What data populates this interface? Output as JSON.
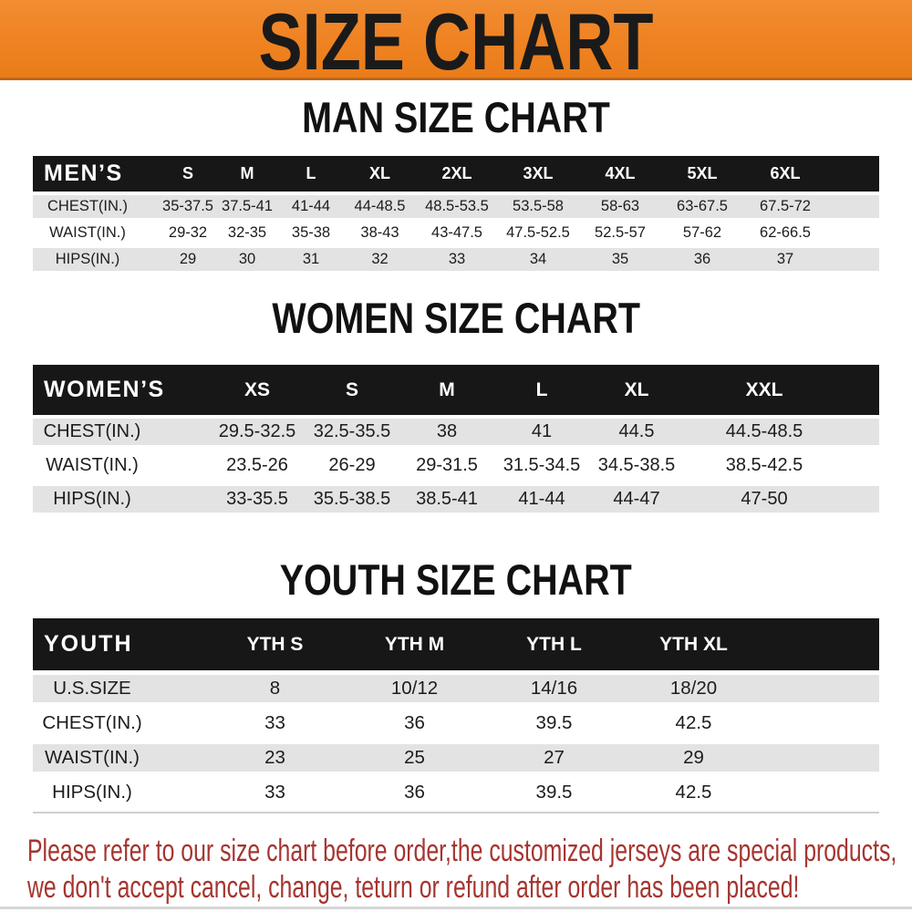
{
  "banner": {
    "title": "SIZE CHART"
  },
  "colors": {
    "banner_orange": "#EF8221",
    "header_bar_black": "#171717",
    "row_gray": "#e3e3e3",
    "footer_red": "#A63530"
  },
  "sections": [
    {
      "heading": "MAN SIZE CHART",
      "group_label": "MEN’S",
      "sizes": [
        "S",
        "M",
        "L",
        "XL",
        "2XL",
        "3XL",
        "4XL",
        "5XL",
        "6XL"
      ],
      "rows": [
        {
          "label": "CHEST(IN.)",
          "values": [
            "35-37.5",
            "37.5-41",
            "41-44",
            "44-48.5",
            "48.5-53.5",
            "53.5-58",
            "58-63",
            "63-67.5",
            "67.5-72"
          ]
        },
        {
          "label": "WAIST(IN.)",
          "values": [
            "29-32",
            "32-35",
            "35-38",
            "38-43",
            "43-47.5",
            "47.5-52.5",
            "52.5-57",
            "57-62",
            "62-66.5"
          ]
        },
        {
          "label": "HIPS(IN.)",
          "values": [
            "29",
            "30",
            "31",
            "32",
            "33",
            "34",
            "35",
            "36",
            "37"
          ]
        }
      ]
    },
    {
      "heading": "WOMEN SIZE CHART",
      "group_label": "WOMEN’S",
      "sizes": [
        "XS",
        "S",
        "M",
        "L",
        "XL",
        "XXL"
      ],
      "rows": [
        {
          "label": "CHEST(IN.)",
          "values": [
            "29.5-32.5",
            "32.5-35.5",
            "38",
            "41",
            "44.5",
            "44.5-48.5"
          ]
        },
        {
          "label": "WAIST(IN.)",
          "values": [
            "23.5-26",
            "26-29",
            "29-31.5",
            "31.5-34.5",
            "34.5-38.5",
            "38.5-42.5"
          ]
        },
        {
          "label": "HIPS(IN.)",
          "values": [
            "33-35.5",
            "35.5-38.5",
            "38.5-41",
            "41-44",
            "44-47",
            "47-50"
          ]
        }
      ]
    },
    {
      "heading": "YOUTH SIZE CHART",
      "group_label": "YOUTH",
      "sizes": [
        "YTH S",
        "YTH M",
        "YTH L",
        "YTH XL"
      ],
      "rows": [
        {
          "label": "U.S.SIZE",
          "values": [
            "8",
            "10/12",
            "14/16",
            "18/20"
          ]
        },
        {
          "label": "CHEST(IN.)",
          "values": [
            "33",
            "36",
            "39.5",
            "42.5"
          ]
        },
        {
          "label": "WAIST(IN.)",
          "values": [
            "23",
            "25",
            "27",
            "29"
          ]
        },
        {
          "label": "HIPS(IN.)",
          "values": [
            "33",
            "36",
            "39.5",
            "42.5"
          ]
        }
      ]
    }
  ],
  "footer": {
    "lines": [
      "Please refer to our size chart before order,the customized jerseys are special products,",
      "we don't accept cancel, change, teturn or refund after order has been placed!"
    ]
  }
}
